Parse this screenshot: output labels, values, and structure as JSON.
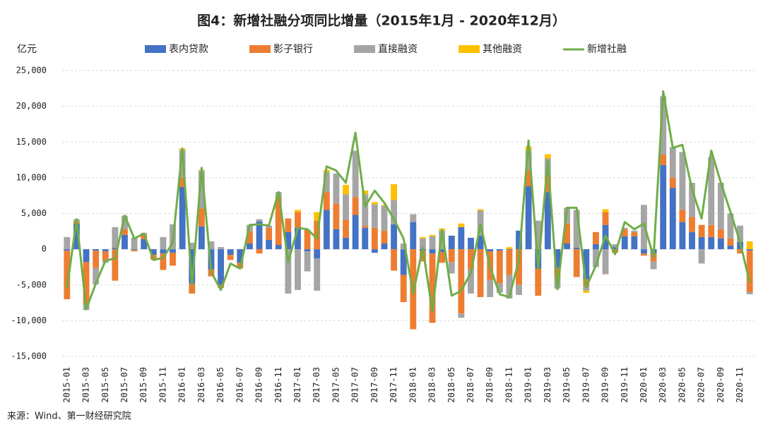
{
  "chart_data": {
    "type": "bar",
    "stacked": true,
    "title": "图4：新增社融分项同比增量（2015年1月 - 2020年12月）",
    "y_unit": "亿元",
    "source": "来源：Wind、第一财经研究院",
    "categories": [
      "2015-01",
      null,
      "2015-03",
      null,
      "2015-05",
      null,
      "2015-07",
      null,
      "2015-09",
      null,
      "2015-11",
      null,
      "2016-01",
      null,
      "2016-03",
      null,
      "2016-05",
      null,
      "2016-07",
      null,
      "2016-09",
      null,
      "2016-11",
      null,
      "2017-01",
      null,
      "2017-03",
      null,
      "2017-05",
      null,
      "2017-07",
      null,
      "2017-09",
      null,
      "2017-11",
      null,
      "2018-01",
      null,
      "2018-03",
      null,
      "2018-05",
      null,
      "2018-07",
      null,
      "2018-09",
      null,
      "2018-11",
      null,
      "2019-01",
      null,
      "2019-03",
      null,
      "2019-05",
      null,
      "2019-07",
      null,
      "2019-09",
      null,
      "2019-11",
      null,
      "2020-01",
      null,
      "2020-03",
      null,
      "2020-05",
      null,
      "2020-07",
      null,
      "2020-09",
      null,
      "2020-11",
      null
    ],
    "series": [
      {
        "name": "表内贷款",
        "color": "#4472c4",
        "values": [
          -200,
          3600,
          -1800,
          -200,
          -300,
          200,
          2000,
          -100,
          1400,
          -800,
          -600,
          -500,
          8700,
          -4800,
          3200,
          -2800,
          -5000,
          -800,
          -1900,
          800,
          3900,
          1300,
          600,
          2400,
          3000,
          -300,
          -1300,
          5500,
          2800,
          1600,
          4800,
          3000,
          -500,
          800,
          3500,
          -3600,
          3800,
          -200,
          -600,
          -400,
          1900,
          3100,
          1600,
          1900,
          -300,
          -200,
          -100,
          2600,
          8800,
          -2700,
          8000,
          -2600,
          800,
          200,
          -4200,
          700,
          3400,
          300,
          1800,
          1800,
          -600,
          -600,
          11800,
          8600,
          3800,
          2400,
          1700,
          1700,
          1500,
          500,
          1000,
          -200
        ]
      },
      {
        "name": "影子银行",
        "color": "#ed7d31",
        "values": [
          -6800,
          300,
          -5800,
          -2400,
          -1300,
          -4400,
          800,
          -200,
          600,
          -600,
          -2300,
          -1800,
          1300,
          -1400,
          2500,
          -1000,
          -400,
          -700,
          -800,
          1700,
          -600,
          1700,
          6600,
          1900,
          2200,
          2700,
          4000,
          2500,
          3600,
          2500,
          2500,
          300,
          3000,
          1800,
          -3000,
          -3800,
          -11200,
          -1500,
          -9700,
          -1500,
          -1800,
          -9000,
          -2800,
          -6700,
          -4000,
          -4600,
          -3500,
          -5000,
          2300,
          -3800,
          2200,
          -1500,
          2800,
          -3900,
          -1000,
          1700,
          1800,
          -500,
          1000,
          600,
          -300,
          -1100,
          1400,
          1400,
          1700,
          2100,
          1700,
          1700,
          1300,
          1000,
          -600,
          -5800
        ]
      },
      {
        "name": "直接融资",
        "color": "#a5a5a5",
        "values": [
          1700,
          300,
          -900,
          -2300,
          -300,
          2900,
          1900,
          1600,
          300,
          -100,
          1700,
          3500,
          3900,
          900,
          5300,
          1100,
          300,
          0,
          0,
          900,
          300,
          300,
          800,
          -6200,
          -5700,
          -2800,
          -4500,
          2800,
          4200,
          3600,
          6500,
          4400,
          3300,
          3500,
          3400,
          800,
          1100,
          1500,
          1800,
          2600,
          -1600,
          -600,
          -3400,
          3500,
          -2400,
          -1300,
          -3300,
          -1400,
          2700,
          4000,
          2500,
          -1400,
          2200,
          5300,
          -600,
          -2500,
          -3500,
          400,
          200,
          200,
          6200,
          -1100,
          8200,
          4300,
          8100,
          4800,
          -2000,
          9500,
          6500,
          3500,
          2300,
          -300
        ]
      },
      {
        "name": "其他融资",
        "color": "#ffc000",
        "values": [
          0,
          0,
          0,
          0,
          0,
          0,
          0,
          0,
          0,
          0,
          0,
          0,
          200,
          0,
          100,
          0,
          0,
          0,
          0,
          0,
          0,
          0,
          0,
          0,
          300,
          0,
          1200,
          300,
          0,
          1300,
          0,
          500,
          300,
          100,
          2200,
          0,
          0,
          200,
          200,
          300,
          0,
          500,
          0,
          200,
          0,
          0,
          300,
          0,
          600,
          0,
          600,
          0,
          0,
          0,
          -300,
          0,
          400,
          0,
          0,
          0,
          0,
          0,
          0,
          0,
          0,
          0,
          0,
          0,
          0,
          0,
          0,
          1100
        ]
      },
      {
        "name": "新增社融",
        "color": "#70ad47",
        "type": "line",
        "values": [
          -5500,
          4200,
          -8400,
          -4800,
          -1600,
          -1300,
          4700,
          1500,
          2200,
          -1500,
          -1200,
          900,
          14100,
          -5000,
          11400,
          -3200,
          -5700,
          -2000,
          -2700,
          3400,
          3500,
          3300,
          8000,
          -1800,
          3000,
          2800,
          1500,
          11600,
          11000,
          9300,
          16300,
          6000,
          8200,
          6500,
          4200,
          1500,
          -6200,
          200,
          -8700,
          2700,
          -6500,
          -5800,
          -3300,
          3500,
          -2500,
          -6300,
          -6700,
          -1500,
          15200,
          -2700,
          12400,
          -5600,
          5800,
          5800,
          -5300,
          -2300,
          1900,
          -700,
          3800,
          2800,
          3600,
          -1100,
          22100,
          14200,
          14600,
          8400,
          4300,
          13800,
          9300,
          5200,
          1000,
          -4700
        ]
      }
    ],
    "ylim": [
      -15000,
      25000
    ],
    "yticks": [
      {
        "value": -15000,
        "label": "-15,000"
      },
      {
        "value": -10000,
        "label": "-10,000"
      },
      {
        "value": -5000,
        "label": "-5,000"
      },
      0,
      {
        "value": 5000,
        "label": "5,000"
      },
      {
        "value": 10000,
        "label": "10,000"
      },
      {
        "value": 15000,
        "label": "15,000"
      },
      {
        "value": 20000,
        "label": "20,000"
      },
      {
        "value": 25000,
        "label": "25,000"
      }
    ],
    "grid": true
  }
}
